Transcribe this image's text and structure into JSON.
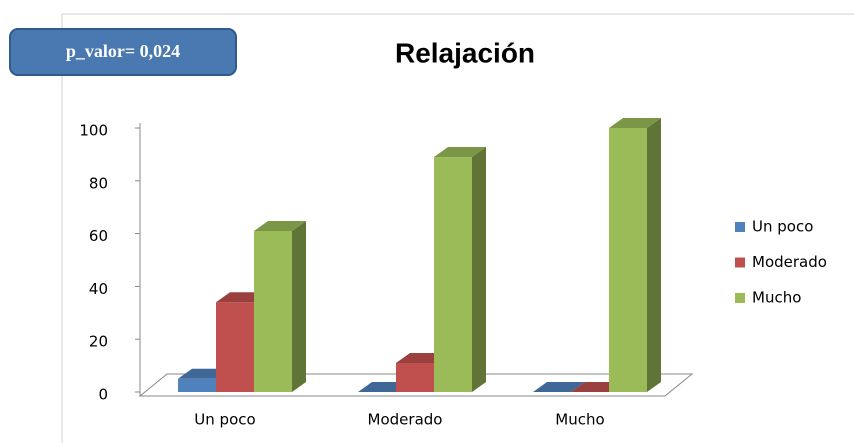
{
  "chart_data": {
    "type": "bar3d",
    "title": "Relajación",
    "annotation": "p_valor= 0,024",
    "categories": [
      "Un poco",
      "Moderado",
      "Mucho"
    ],
    "series": [
      {
        "name": "Un poco",
        "color": "#4f81bd",
        "values": [
          5,
          0,
          0
        ]
      },
      {
        "name": "Moderado",
        "color": "#c0504d",
        "values": [
          34,
          11,
          0
        ]
      },
      {
        "name": "Mucho",
        "color": "#9bbb59",
        "values": [
          61,
          89,
          100
        ]
      }
    ],
    "ylim": [
      0,
      100
    ],
    "yticks": [
      0,
      20,
      40,
      60,
      80,
      100
    ],
    "grid": false,
    "legend": "right"
  }
}
